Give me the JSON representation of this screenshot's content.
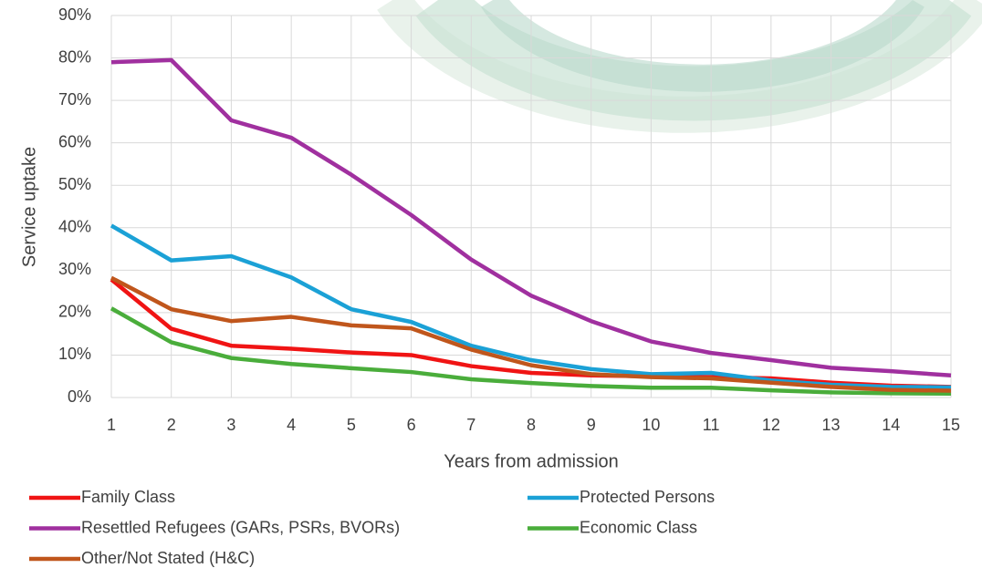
{
  "chart_data": {
    "type": "line",
    "x_label": "Years from admission",
    "y_label": "Service uptake",
    "x": [
      1,
      2,
      3,
      4,
      5,
      6,
      7,
      8,
      9,
      10,
      11,
      12,
      13,
      14,
      15
    ],
    "xlim": [
      1,
      15
    ],
    "xticks": [
      1,
      2,
      3,
      4,
      5,
      6,
      7,
      8,
      9,
      10,
      11,
      12,
      13,
      14,
      15
    ],
    "ylim": [
      0,
      90
    ],
    "yticks": [
      {
        "value": 0,
        "label": "0%"
      },
      {
        "value": 10,
        "label": "10%"
      },
      {
        "value": 20,
        "label": "20%"
      },
      {
        "value": 30,
        "label": "30%"
      },
      {
        "value": 40,
        "label": "40%"
      },
      {
        "value": 50,
        "label": "50%"
      },
      {
        "value": 60,
        "label": "60%"
      },
      {
        "value": 70,
        "label": "70%"
      },
      {
        "value": 80,
        "label": "80%"
      },
      {
        "value": 90,
        "label": "90%"
      }
    ],
    "grid": true,
    "legend": "bottom",
    "series": [
      {
        "name": "Family Class",
        "color": "#f01414",
        "values": [
          27.8,
          16.2,
          12.2,
          11.5,
          10.6,
          10,
          7.4,
          5.8,
          5.2,
          5,
          4.8,
          4.5,
          3.5,
          2.8,
          2.5
        ]
      },
      {
        "name": "Protected Persons",
        "color": "#1ba1d6",
        "values": [
          40.5,
          32.3,
          33.3,
          28.3,
          20.8,
          17.8,
          12.2,
          8.8,
          6.7,
          5.5,
          5.8,
          4,
          3,
          2.5,
          2.4
        ]
      },
      {
        "name": "Resettled Refugees (GARs, PSRs, BVORs)",
        "color": "#a0309f",
        "values": [
          79,
          79.5,
          65.3,
          61.2,
          52.5,
          43,
          32.5,
          24,
          18,
          13.2,
          10.5,
          8.8,
          7,
          6.2,
          5.2
        ]
      },
      {
        "name": "Economic Class",
        "color": "#4aad3b",
        "values": [
          21,
          13,
          9.3,
          7.9,
          6.9,
          6,
          4.3,
          3.4,
          2.7,
          2.3,
          2.3,
          1.7,
          1.2,
          1,
          0.9
        ]
      },
      {
        "name": "Other/Not Stated (H&C)",
        "color": "#c0561c",
        "values": [
          28.2,
          20.8,
          18,
          19,
          17,
          16.3,
          11.3,
          7.6,
          5.5,
          4.8,
          4.5,
          3.5,
          2.5,
          1.8,
          1.6
        ]
      }
    ]
  }
}
